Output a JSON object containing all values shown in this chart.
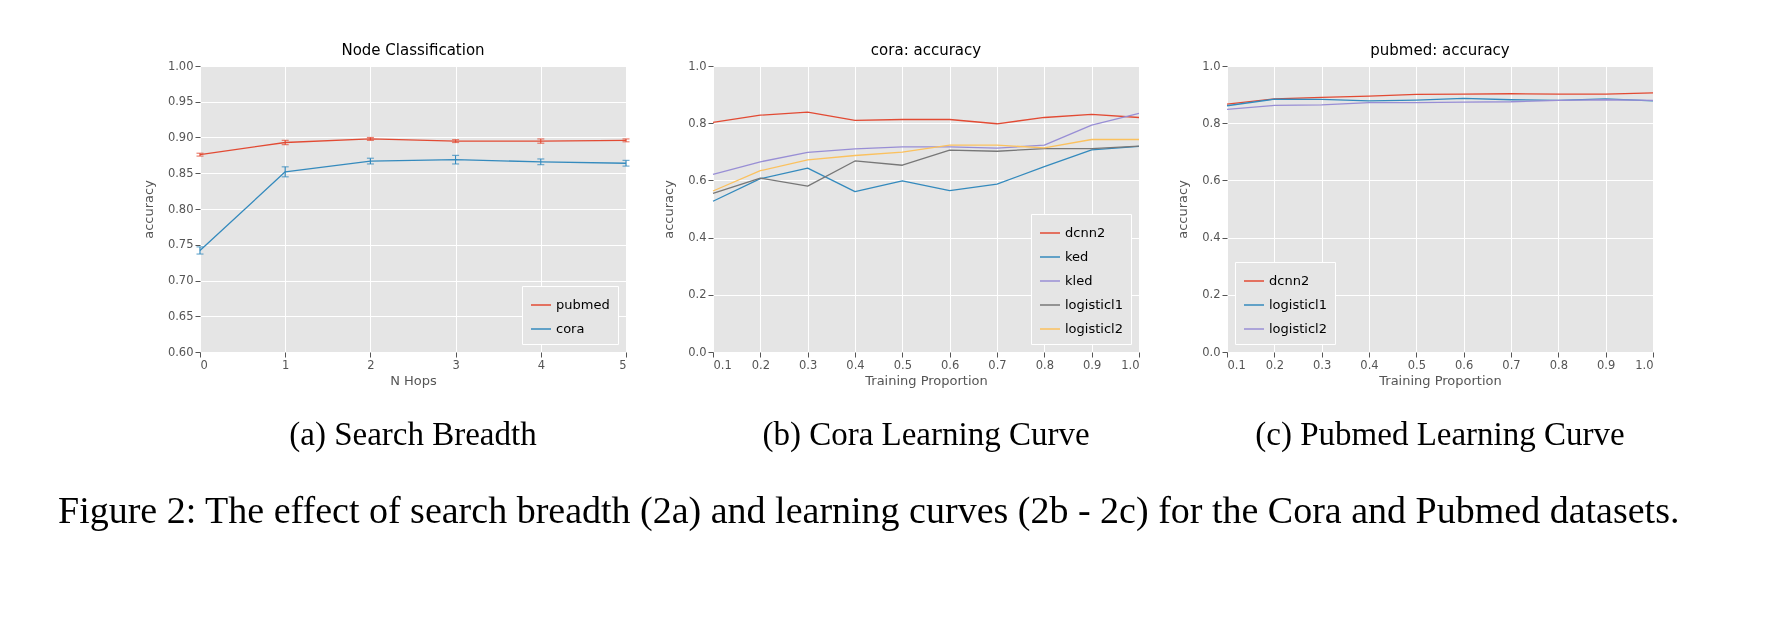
{
  "chart_data": [
    {
      "type": "line",
      "title": "Node Classification",
      "xlabel": "N Hops",
      "ylabel": "accuracy",
      "x": [
        0,
        1,
        2,
        3,
        4,
        5
      ],
      "series": [
        {
          "name": "pubmed",
          "color": "#e24a33",
          "values": [
            0.876,
            0.893,
            0.898,
            0.895,
            0.895,
            0.896
          ],
          "errors": [
            0.002,
            0.003,
            0.002,
            0.002,
            0.003,
            0.002
          ]
        },
        {
          "name": "cora",
          "color": "#348abd",
          "values": [
            0.742,
            0.852,
            0.867,
            0.869,
            0.866,
            0.864
          ],
          "errors": [
            0.005,
            0.007,
            0.004,
            0.006,
            0.004,
            0.004
          ]
        }
      ],
      "xlim": [
        0,
        5
      ],
      "xticks": [
        0,
        1,
        2,
        3,
        4,
        5
      ],
      "ylim": [
        0.6,
        1.0
      ],
      "yticks": [
        {
          "value": 0.6,
          "label": "0.60"
        },
        0.65,
        {
          "value": 0.7,
          "label": "0.70"
        },
        0.75,
        {
          "value": 0.8,
          "label": "0.80"
        },
        0.85,
        {
          "value": 0.9,
          "label": "0.90"
        },
        0.95,
        {
          "value": 1.0,
          "label": "1.00"
        }
      ],
      "grid": true,
      "legend": "bottom right",
      "marker": "none",
      "line_style": "solid",
      "annotations": [
        "(a) Search Breadth",
        "Figure 2: The effect of search breadth (2a) and learning curves (2b - 2c) for the Cora and Pubmed datasets."
      ]
    },
    {
      "type": "line",
      "title": "cora: accuracy",
      "xlabel": "Training Proportion",
      "ylabel": "accuracy",
      "x": [
        0.1,
        0.2,
        0.3,
        0.4,
        0.5,
        0.6,
        0.7,
        0.8,
        0.9,
        1.0
      ],
      "series": [
        {
          "name": "dcnn2",
          "color": "#e24a33",
          "values": [
            0.803,
            0.828,
            0.839,
            0.81,
            0.813,
            0.813,
            0.798,
            0.82,
            0.831,
            0.82
          ]
        },
        {
          "name": "ked",
          "color": "#348abd",
          "values": [
            0.527,
            0.606,
            0.643,
            0.561,
            0.598,
            0.564,
            0.587,
            0.648,
            0.707,
            0.719
          ]
        },
        {
          "name": "kled",
          "color": "#988ed5",
          "values": [
            0.621,
            0.665,
            0.698,
            0.71,
            0.717,
            0.717,
            0.713,
            0.723,
            0.793,
            0.834
          ]
        },
        {
          "name": "logisticl1",
          "color": "#777777",
          "values": [
            0.555,
            0.608,
            0.58,
            0.668,
            0.653,
            0.706,
            0.702,
            0.711,
            0.711,
            0.72
          ]
        },
        {
          "name": "logisticl2",
          "color": "#fbc15e",
          "values": [
            0.563,
            0.634,
            0.672,
            0.687,
            0.699,
            0.723,
            0.723,
            0.714,
            0.743,
            0.743
          ]
        }
      ],
      "xlim": [
        0.1,
        1.0
      ],
      "xticks": [
        0.1,
        0.2,
        0.3,
        0.4,
        0.5,
        0.6,
        0.7,
        0.8,
        0.9,
        {
          "value": 1.0,
          "label": "1.0"
        }
      ],
      "ylim": [
        0,
        1.0
      ],
      "yticks": [
        {
          "value": 0,
          "label": "0.0"
        },
        0.2,
        0.4,
        0.6,
        0.8,
        {
          "value": 1.0,
          "label": "1.0"
        }
      ],
      "grid": true,
      "legend": "bottom right",
      "marker": "none",
      "line_style": "solid",
      "annotations": [
        "(b) Cora Learning Curve"
      ]
    },
    {
      "type": "line",
      "title": "pubmed: accuracy",
      "xlabel": "Training Proportion",
      "ylabel": "accuracy",
      "x": [
        0.1,
        0.2,
        0.3,
        0.4,
        0.5,
        0.6,
        0.7,
        0.8,
        0.9,
        1.0
      ],
      "series": [
        {
          "name": "dcnn2",
          "color": "#e24a33",
          "values": [
            0.867,
            0.885,
            0.89,
            0.895,
            0.901,
            0.902,
            0.903,
            0.902,
            0.902,
            0.906
          ]
        },
        {
          "name": "logisticl1",
          "color": "#348abd",
          "values": [
            0.861,
            0.884,
            0.883,
            0.878,
            0.881,
            0.887,
            0.882,
            0.88,
            0.885,
            0.878
          ]
        },
        {
          "name": "logisticl2",
          "color": "#988ed5",
          "values": [
            0.848,
            0.862,
            0.864,
            0.872,
            0.872,
            0.874,
            0.875,
            0.88,
            0.882,
            0.88
          ]
        }
      ],
      "xlim": [
        0.1,
        1.0
      ],
      "xticks": [
        0.1,
        0.2,
        0.3,
        0.4,
        0.5,
        0.6,
        0.7,
        0.8,
        0.9,
        {
          "value": 1.0,
          "label": "1.0"
        }
      ],
      "ylim": [
        0,
        1.0
      ],
      "yticks": [
        {
          "value": 0,
          "label": "0.0"
        },
        0.2,
        0.4,
        0.6,
        0.8,
        {
          "value": 1.0,
          "label": "1.0"
        }
      ],
      "grid": true,
      "legend": "bottom left",
      "marker": "none",
      "line_style": "solid",
      "annotations": [
        "(c) Pubmed Learning Curve"
      ]
    }
  ]
}
